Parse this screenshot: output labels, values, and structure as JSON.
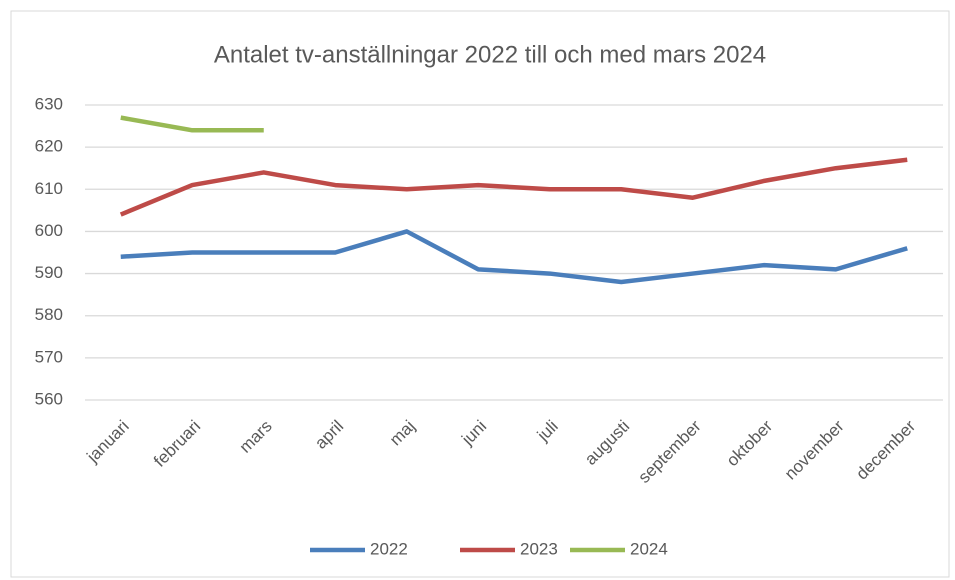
{
  "chart_data": {
    "type": "line",
    "title": "Antalet tv-anställningar 2022 till och med mars 2024",
    "categories": [
      "januari",
      "februari",
      "mars",
      "april",
      "maj",
      "juni",
      "juli",
      "augusti",
      "september",
      "oktober",
      "november",
      "december"
    ],
    "series": [
      {
        "name": "2022",
        "color": "#4a7ebb",
        "values": [
          594,
          595,
          595,
          595,
          600,
          591,
          590,
          588,
          590,
          592,
          591,
          596
        ]
      },
      {
        "name": "2023",
        "color": "#be4b48",
        "values": [
          604,
          611,
          614,
          611,
          610,
          611,
          610,
          610,
          608,
          612,
          615,
          617
        ]
      },
      {
        "name": "2024",
        "color": "#98b954",
        "values": [
          627,
          624,
          624,
          null,
          null,
          null,
          null,
          null,
          null,
          null,
          null,
          null
        ]
      }
    ],
    "ylim": [
      560,
      630
    ],
    "yticks": [
      560,
      570,
      580,
      590,
      600,
      610,
      620,
      630
    ],
    "grid": true,
    "legend": "bottom"
  }
}
